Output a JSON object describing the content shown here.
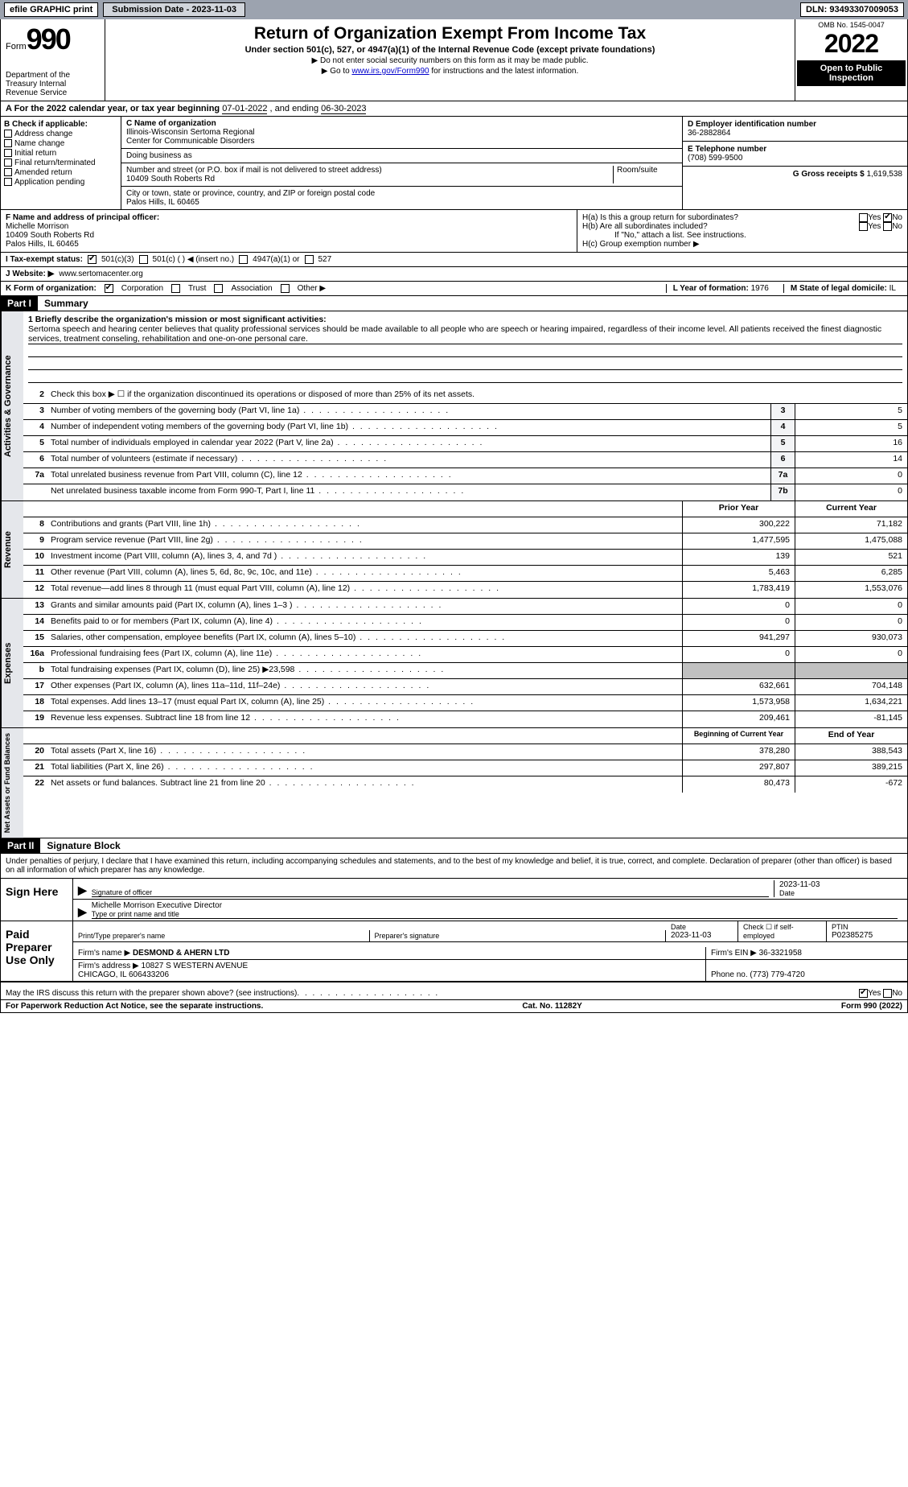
{
  "topbar": {
    "efile": "efile GRAPHIC print",
    "sub_label": "Submission Date - 2023-11-03",
    "dln": "DLN: 93493307009053"
  },
  "header": {
    "form_word": "Form",
    "form_num": "990",
    "dept": "Department of the Treasury\nInternal Revenue Service",
    "title": "Return of Organization Exempt From Income Tax",
    "subtitle": "Under section 501(c), 527, or 4947(a)(1) of the Internal Revenue Code (except private foundations)",
    "note1": "▶ Do not enter social security numbers on this form as it may be made public.",
    "note2_pre": "▶ Go to ",
    "note2_link": "www.irs.gov/Form990",
    "note2_post": " for instructions and the latest information.",
    "omb": "OMB No. 1545-0047",
    "year": "2022",
    "open": "Open to Public Inspection"
  },
  "rowA": {
    "text_pre": "A For the 2022 calendar year, or tax year beginning ",
    "begin": "07-01-2022",
    "mid": " , and ending ",
    "end": "06-30-2023"
  },
  "colB": {
    "hdr": "B Check if applicable:",
    "items": [
      "Address change",
      "Name change",
      "Initial return",
      "Final return/terminated",
      "Amended return",
      "Application pending"
    ]
  },
  "colC": {
    "name_lbl": "C Name of organization",
    "name": "Illinois-Wisconsin Sertoma Regional\nCenter for Communicable Disorders",
    "dba_lbl": "Doing business as",
    "dba": "",
    "addr_lbl": "Number and street (or P.O. box if mail is not delivered to street address)",
    "room_lbl": "Room/suite",
    "addr": "10409 South Roberts Rd",
    "city_lbl": "City or town, state or province, country, and ZIP or foreign postal code",
    "city": "Palos Hills, IL  60465"
  },
  "colD": {
    "lbl": "D Employer identification number",
    "val": "36-2882864"
  },
  "colE": {
    "lbl": "E Telephone number",
    "val": "(708) 599-9500"
  },
  "colG": {
    "lbl": "G Gross receipts $",
    "val": "1,619,538"
  },
  "colF": {
    "lbl": "F Name and address of principal officer:",
    "name": "Michelle Morrison",
    "addr": "10409 South Roberts Rd\nPalos Hills, IL  60465"
  },
  "colH": {
    "ha": "H(a)  Is this a group return for subordinates?",
    "hb": "H(b)  Are all subordinates included?",
    "hb_note": "If \"No,\" attach a list. See instructions.",
    "hc": "H(c)  Group exemption number ▶"
  },
  "rowI": {
    "lbl": "I   Tax-exempt status:",
    "o1": "501(c)(3)",
    "o2": "501(c) (   ) ◀ (insert no.)",
    "o3": "4947(a)(1) or",
    "o4": "527"
  },
  "rowJ": {
    "lbl": "J   Website: ▶",
    "val": "www.sertomacenter.org"
  },
  "rowK": {
    "lbl": "K Form of organization:",
    "o1": "Corporation",
    "o2": "Trust",
    "o3": "Association",
    "o4": "Other ▶"
  },
  "rowL": {
    "lbl": "L Year of formation:",
    "val": "1976"
  },
  "rowM": {
    "lbl": "M State of legal domicile:",
    "val": "IL"
  },
  "part1": {
    "tag": "Part I",
    "title": "Summary"
  },
  "summary": {
    "l1_lbl": "1  Briefly describe the organization's mission or most significant activities:",
    "l1_text": "Sertoma speech and hearing center believes that quality professional services should be made available to all people who are speech or hearing impaired, regardless of their income level. All patients received the finest diagnostic services, treatment conseling, rehabilitation and one-on-one personal care.",
    "l2": "Check this box ▶ ☐  if the organization discontinued its operations or disposed of more than 25% of its net assets.",
    "lines_ag": [
      {
        "n": "3",
        "d": "Number of voting members of the governing body (Part VI, line 1a)",
        "b": "3",
        "v": "5"
      },
      {
        "n": "4",
        "d": "Number of independent voting members of the governing body (Part VI, line 1b)",
        "b": "4",
        "v": "5"
      },
      {
        "n": "5",
        "d": "Total number of individuals employed in calendar year 2022 (Part V, line 2a)",
        "b": "5",
        "v": "16"
      },
      {
        "n": "6",
        "d": "Total number of volunteers (estimate if necessary)",
        "b": "6",
        "v": "14"
      },
      {
        "n": "7a",
        "d": "Total unrelated business revenue from Part VIII, column (C), line 12",
        "b": "7a",
        "v": "0"
      },
      {
        "n": "",
        "d": "Net unrelated business taxable income from Form 990-T, Part I, line 11",
        "b": "7b",
        "v": "0"
      }
    ],
    "hdr_prior": "Prior Year",
    "hdr_curr": "Current Year",
    "rev": [
      {
        "n": "8",
        "d": "Contributions and grants (Part VIII, line 1h)",
        "p": "300,222",
        "c": "71,182"
      },
      {
        "n": "9",
        "d": "Program service revenue (Part VIII, line 2g)",
        "p": "1,477,595",
        "c": "1,475,088"
      },
      {
        "n": "10",
        "d": "Investment income (Part VIII, column (A), lines 3, 4, and 7d )",
        "p": "139",
        "c": "521"
      },
      {
        "n": "11",
        "d": "Other revenue (Part VIII, column (A), lines 5, 6d, 8c, 9c, 10c, and 11e)",
        "p": "5,463",
        "c": "6,285"
      },
      {
        "n": "12",
        "d": "Total revenue—add lines 8 through 11 (must equal Part VIII, column (A), line 12)",
        "p": "1,783,419",
        "c": "1,553,076"
      }
    ],
    "exp": [
      {
        "n": "13",
        "d": "Grants and similar amounts paid (Part IX, column (A), lines 1–3 )",
        "p": "0",
        "c": "0"
      },
      {
        "n": "14",
        "d": "Benefits paid to or for members (Part IX, column (A), line 4)",
        "p": "0",
        "c": "0"
      },
      {
        "n": "15",
        "d": "Salaries, other compensation, employee benefits (Part IX, column (A), lines 5–10)",
        "p": "941,297",
        "c": "930,073"
      },
      {
        "n": "16a",
        "d": "Professional fundraising fees (Part IX, column (A), line 11e)",
        "p": "0",
        "c": "0"
      },
      {
        "n": "b",
        "d": "Total fundraising expenses (Part IX, column (D), line 25) ▶23,598",
        "p": "",
        "c": "",
        "shade": true
      },
      {
        "n": "17",
        "d": "Other expenses (Part IX, column (A), lines 11a–11d, 11f–24e)",
        "p": "632,661",
        "c": "704,148"
      },
      {
        "n": "18",
        "d": "Total expenses. Add lines 13–17 (must equal Part IX, column (A), line 25)",
        "p": "1,573,958",
        "c": "1,634,221"
      },
      {
        "n": "19",
        "d": "Revenue less expenses. Subtract line 18 from line 12",
        "p": "209,461",
        "c": "-81,145"
      }
    ],
    "hdr_begin": "Beginning of Current Year",
    "hdr_end": "End of Year",
    "net": [
      {
        "n": "20",
        "d": "Total assets (Part X, line 16)",
        "p": "378,280",
        "c": "388,543"
      },
      {
        "n": "21",
        "d": "Total liabilities (Part X, line 26)",
        "p": "297,807",
        "c": "389,215"
      },
      {
        "n": "22",
        "d": "Net assets or fund balances. Subtract line 21 from line 20",
        "p": "80,473",
        "c": "-672"
      }
    ]
  },
  "sides": {
    "ag": "Activities & Governance",
    "rev": "Revenue",
    "exp": "Expenses",
    "net": "Net Assets or Fund Balances"
  },
  "part2": {
    "tag": "Part II",
    "title": "Signature Block"
  },
  "sig": {
    "penalties": "Under penalties of perjury, I declare that I have examined this return, including accompanying schedules and statements, and to the best of my knowledge and belief, it is true, correct, and complete. Declaration of preparer (other than officer) is based on all information of which preparer has any knowledge.",
    "sign_here": "Sign Here",
    "sig_officer": "Signature of officer",
    "date_lbl": "Date",
    "sig_date": "2023-11-03",
    "name_title": "Michelle Morrison  Executive Director",
    "name_title_lbl": "Type or print name and title",
    "paid": "Paid Preparer Use Only",
    "p_name_lbl": "Print/Type preparer's name",
    "p_sig_lbl": "Preparer's signature",
    "p_date": "2023-11-03",
    "p_self": "Check ☐ if self-employed",
    "ptin_lbl": "PTIN",
    "ptin": "P02385275",
    "firm_name_lbl": "Firm's name    ▶",
    "firm_name": "DESMOND & AHERN LTD",
    "firm_ein_lbl": "Firm's EIN ▶",
    "firm_ein": "36-3321958",
    "firm_addr_lbl": "Firm's address ▶",
    "firm_addr": "10827 S WESTERN AVENUE\nCHICAGO, IL  606433206",
    "phone_lbl": "Phone no.",
    "phone": "(773) 779-4720",
    "discuss": "May the IRS discuss this return with the preparer shown above? (see instructions)"
  },
  "footer": {
    "left": "For Paperwork Reduction Act Notice, see the separate instructions.",
    "mid": "Cat. No. 11282Y",
    "right": "Form 990 (2022)"
  },
  "labels": {
    "yes": "Yes",
    "no": "No"
  }
}
